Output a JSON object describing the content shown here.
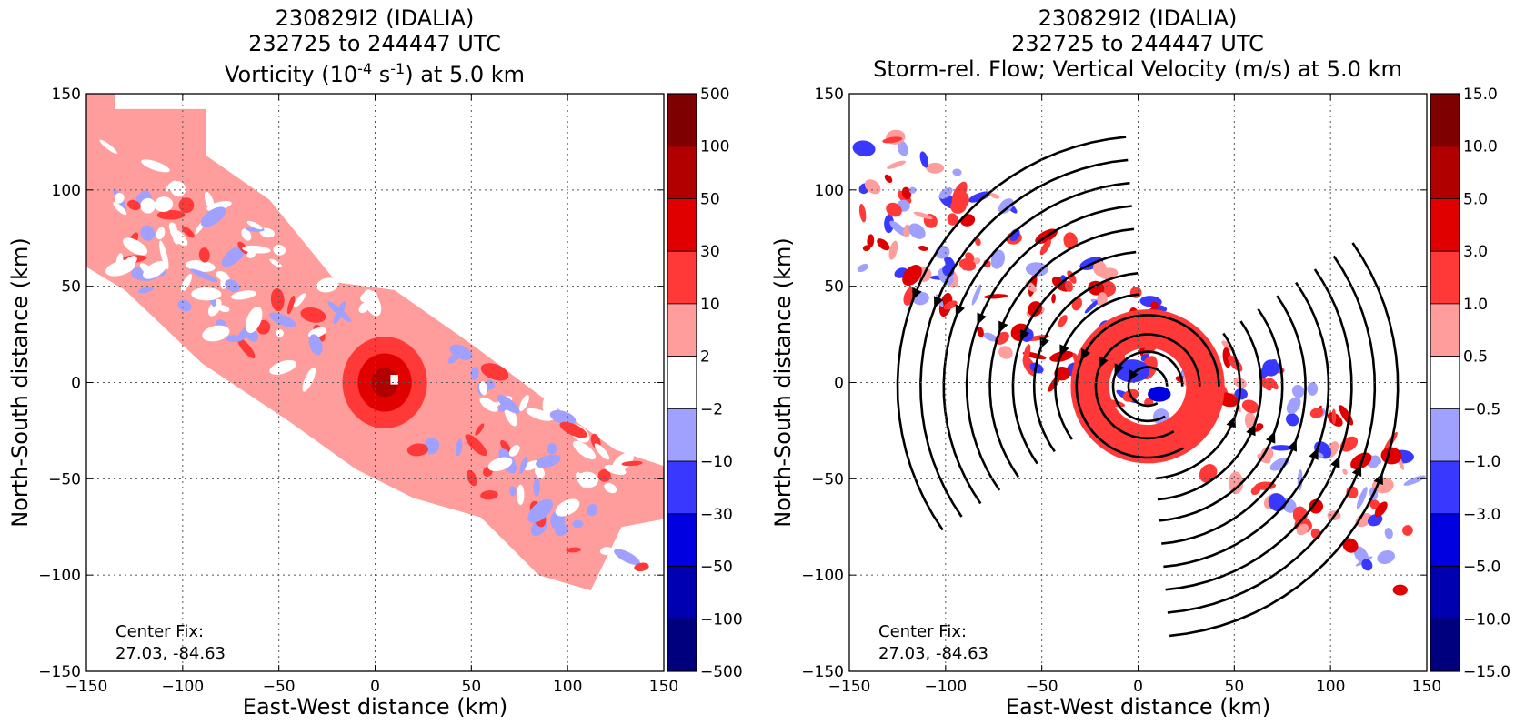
{
  "chart_data": [
    {
      "type": "heatmap",
      "title": "230829I2 (IDALIA)",
      "subtitle": "232725 to 244447 UTC",
      "field_title": {
        "prefix": "Vorticity (10",
        "exp1": "-4",
        "mid": " s",
        "exp2": "-1",
        "suffix": ") at 5.0 km"
      },
      "xlabel": "East-West distance (km)",
      "ylabel": "North-South distance (km)",
      "xlim": [
        -150,
        150
      ],
      "ylim": [
        -150,
        150
      ],
      "x_ticks": [
        "−150",
        "−100",
        "−50",
        "0",
        "50",
        "100",
        "150"
      ],
      "y_ticks": [
        "150",
        "100",
        "50",
        "0",
        "−50",
        "−100",
        "−150"
      ],
      "grid": true,
      "annotation": {
        "line1": "Center Fix:",
        "line2": "27.03, -84.63"
      },
      "colorbar": {
        "labels": [
          "500",
          "100",
          "50",
          "30",
          "10",
          "2",
          "−2",
          "−10",
          "−30",
          "−50",
          "−100",
          "−500"
        ],
        "colors": [
          "#7f0000",
          "#b00000",
          "#e00000",
          "#ff3838",
          "#ff9c9c",
          "#ffffff",
          "#a0a0ff",
          "#3838ff",
          "#0000e0",
          "#0000b0",
          "#00007f"
        ]
      },
      "vortex_center_km": [
        5,
        0
      ],
      "vortex_contours": [
        {
          "range": "2-10",
          "radius_km": 32,
          "color": "#ff9c9c"
        },
        {
          "range": "10-30",
          "radius_km": 22,
          "color": "#ff3838"
        },
        {
          "range": "30-50",
          "radius_km": 14,
          "color": "#e00000"
        },
        {
          "range": "50-100",
          "radius_km": 7,
          "color": "#b00000"
        }
      ]
    },
    {
      "type": "heatmap",
      "title": "230829I2 (IDALIA)",
      "subtitle": "232725 to 244447 UTC",
      "field_title": {
        "text": "Storm-rel. Flow; Vertical Velocity (m/s) at 5.0 km"
      },
      "xlabel": "East-West distance (km)",
      "ylabel": "North-South distance (km)",
      "xlim": [
        -150,
        150
      ],
      "ylim": [
        -150,
        150
      ],
      "x_ticks": [
        "−150",
        "−100",
        "−50",
        "0",
        "50",
        "100",
        "150"
      ],
      "y_ticks": [
        "150",
        "100",
        "50",
        "0",
        "−50",
        "−100",
        "−150"
      ],
      "grid": true,
      "annotation": {
        "line1": "Center Fix:",
        "line2": "27.03, -84.63"
      },
      "colorbar": {
        "labels": [
          "15.0",
          "10.0",
          "5.0",
          "3.0",
          "1.0",
          "0.5",
          "−0.5",
          "−1.0",
          "−3.0",
          "−5.0",
          "−10.0",
          "−15.0"
        ],
        "colors": [
          "#7f0000",
          "#b00000",
          "#e00000",
          "#ff3838",
          "#ff9c9c",
          "#ffffff",
          "#a0a0ff",
          "#3838ff",
          "#0000e0",
          "#0000b0",
          "#00007f"
        ]
      },
      "streamline_center_km": [
        5,
        -2
      ],
      "streamline_rotation": "cyclonic (counter-clockwise)",
      "streamline_radii_km": [
        10,
        18,
        27,
        37,
        48,
        59,
        70,
        82,
        94,
        106,
        118,
        130
      ]
    }
  ]
}
